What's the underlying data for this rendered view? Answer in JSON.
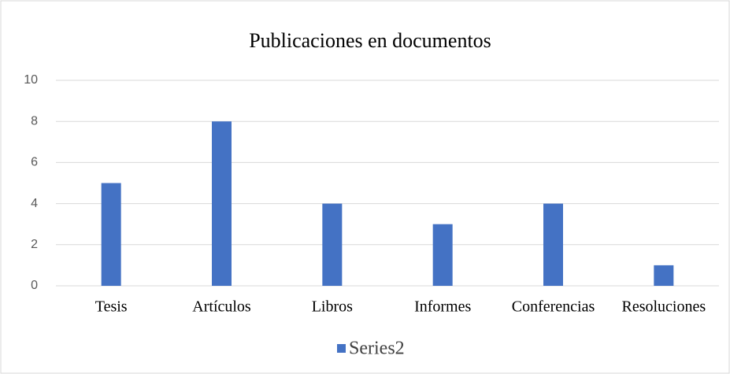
{
  "chart_data": {
    "type": "bar",
    "title": "Publicaciones en documentos",
    "categories": [
      "Tesis",
      "Artículos",
      "Libros",
      "Informes",
      "Conferencias",
      "Resoluciones"
    ],
    "series": [
      {
        "name": "Series2",
        "color": "#4472c4",
        "values": [
          5,
          8,
          4,
          3,
          4,
          1
        ]
      }
    ],
    "ylim": [
      0,
      10
    ],
    "yticks": [
      0,
      2,
      4,
      6,
      8,
      10
    ],
    "grid": true,
    "legend": "bottom"
  }
}
